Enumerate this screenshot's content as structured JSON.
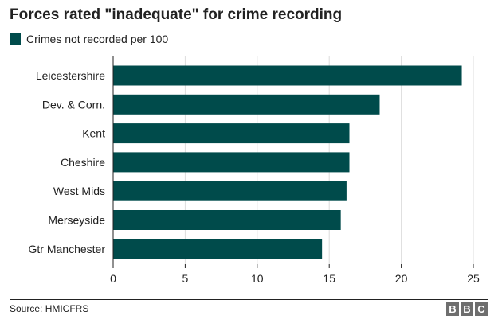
{
  "title": "Forces rated \"inadequate\" for crime recording",
  "source": "Source: HMICFRS",
  "logo_letters": [
    "B",
    "B",
    "C"
  ],
  "colors": {
    "bar": "#004b4b",
    "grid": "#dcdcdc",
    "text": "#222222",
    "logo": "#6e6e6e"
  },
  "chart_data": {
    "type": "bar",
    "orientation": "horizontal",
    "categories": [
      "Leicestershire",
      "Dev. & Corn.",
      "Kent",
      "Cheshire",
      "West Mids",
      "Merseyside",
      "Gtr Manchester"
    ],
    "series": [
      {
        "name": "Crimes not recorded per 100",
        "values": [
          24.2,
          18.5,
          16.4,
          16.4,
          16.2,
          15.8,
          14.5
        ]
      }
    ],
    "xlim": [
      0,
      25
    ],
    "xticks": [
      0,
      5,
      10,
      15,
      20,
      25
    ],
    "grid": true,
    "legend_position": "top-left"
  }
}
